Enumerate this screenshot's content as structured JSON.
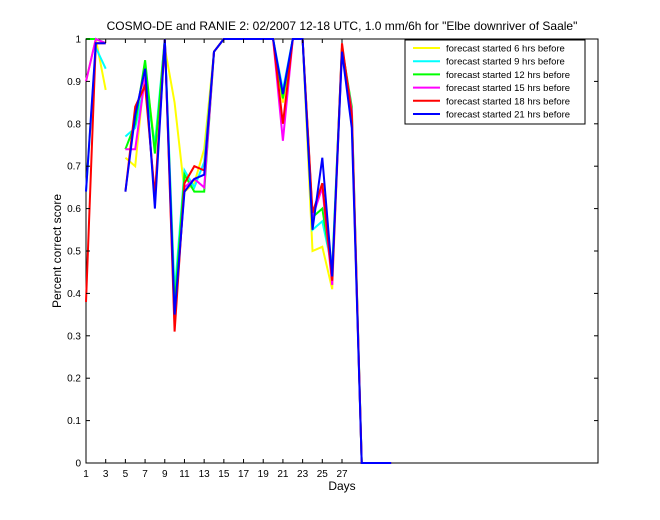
{
  "chart_data": {
    "type": "line",
    "title": "COSMO-DE and RANIE 2: 02/2007 12-18 UTC, 1.0 mm/6h for \"Elbe downriver of Saale\"",
    "xlabel": "Days",
    "ylabel": "Percent correct score",
    "xlim": [
      1,
      53
    ],
    "ylim": [
      0,
      1
    ],
    "x_ticks": [
      1,
      3,
      5,
      7,
      9,
      11,
      13,
      15,
      17,
      19,
      21,
      23,
      25,
      27
    ],
    "y_ticks": [
      0,
      0.1,
      0.2,
      0.3,
      0.4,
      0.5,
      0.6,
      0.7,
      0.8,
      0.9,
      1
    ],
    "x_tick_labels": [
      "1",
      "3",
      "5",
      "7",
      "9",
      "11",
      "13",
      "15",
      "17",
      "19",
      "21",
      "23",
      "25",
      "27"
    ],
    "y_tick_labels": [
      "0",
      "0.1",
      "0.2",
      "0.3",
      "0.4",
      "0.5",
      "0.6",
      "0.7",
      "0.8",
      "0.9",
      "1"
    ],
    "grid": false,
    "legend_position": "top-right",
    "x": [
      1,
      2,
      3,
      4,
      5,
      6,
      7,
      8,
      9,
      10,
      11,
      12,
      13,
      14,
      15,
      16,
      17,
      18,
      19,
      20,
      21,
      22,
      23,
      24,
      25,
      26,
      27,
      28,
      29,
      30,
      31,
      32
    ],
    "series": [
      {
        "name": "forecast started 6 hrs before",
        "color": "#ffff00",
        "values": [
          0.9,
          1.0,
          0.88,
          null,
          0.72,
          0.7,
          0.93,
          0.75,
          0.98,
          0.85,
          0.64,
          0.66,
          0.74,
          0.97,
          1.0,
          1.0,
          1.0,
          1.0,
          1.0,
          1.0,
          0.85,
          1.0,
          1.0,
          0.5,
          0.51,
          0.41,
          0.98,
          0.81,
          0.0,
          0.0,
          0.0,
          0.0
        ]
      },
      {
        "name": "forecast started 9 hrs before",
        "color": "#00ffff",
        "values": [
          0.64,
          0.98,
          0.93,
          null,
          0.77,
          0.79,
          0.9,
          0.75,
          1.0,
          0.4,
          0.69,
          0.65,
          0.71,
          0.97,
          1.0,
          1.0,
          1.0,
          1.0,
          1.0,
          1.0,
          0.88,
          1.0,
          1.0,
          0.55,
          0.57,
          0.46,
          0.98,
          0.83,
          0.0,
          0.0,
          0.0,
          0.0
        ]
      },
      {
        "name": "forecast started 12 hrs before",
        "color": "#00ff00",
        "values": [
          1.0,
          1.0,
          0.99,
          null,
          0.74,
          0.8,
          0.95,
          0.73,
          1.0,
          0.37,
          0.68,
          0.64,
          0.64,
          0.97,
          1.0,
          1.0,
          1.0,
          1.0,
          1.0,
          1.0,
          0.86,
          1.0,
          1.0,
          0.58,
          0.6,
          0.45,
          0.98,
          0.84,
          0.0,
          0.0,
          0.0,
          0.0
        ]
      },
      {
        "name": "forecast started 15 hrs before",
        "color": "#ff00ff",
        "values": [
          0.9,
          1.0,
          0.99,
          null,
          0.74,
          0.74,
          0.91,
          0.62,
          1.0,
          0.33,
          0.65,
          0.67,
          0.65,
          0.97,
          1.0,
          1.0,
          1.0,
          1.0,
          1.0,
          1.0,
          0.76,
          1.0,
          1.0,
          0.58,
          0.65,
          0.42,
          0.98,
          0.83,
          0.0,
          0.0,
          0.0,
          0.0
        ]
      },
      {
        "name": "forecast started 18 hrs before",
        "color": "#ff0000",
        "values": [
          0.38,
          0.99,
          0.99,
          null,
          0.64,
          0.84,
          0.89,
          0.63,
          1.0,
          0.31,
          0.66,
          0.7,
          0.69,
          0.97,
          1.0,
          1.0,
          1.0,
          1.0,
          1.0,
          1.0,
          0.8,
          1.0,
          1.0,
          0.59,
          0.66,
          0.43,
          0.99,
          0.82,
          0.0,
          0.0,
          0.0,
          0.0
        ]
      },
      {
        "name": "forecast started 21 hrs before",
        "color": "#0000ff",
        "values": [
          0.64,
          0.99,
          0.99,
          null,
          0.64,
          0.82,
          0.93,
          0.6,
          1.0,
          0.35,
          0.64,
          0.67,
          0.68,
          0.97,
          1.0,
          1.0,
          1.0,
          1.0,
          1.0,
          1.0,
          0.87,
          1.0,
          1.0,
          0.55,
          0.72,
          0.44,
          0.97,
          0.79,
          0.0,
          0.0,
          0.0,
          0.0
        ]
      }
    ]
  }
}
